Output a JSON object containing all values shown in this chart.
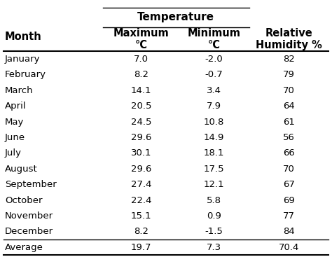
{
  "months": [
    "January",
    "February",
    "March",
    "April",
    "May",
    "June",
    "July",
    "August",
    "September",
    "October",
    "November",
    "December",
    "Average"
  ],
  "max_temp": [
    "7.0",
    "8.2",
    "14.1",
    "20.5",
    "24.5",
    "29.6",
    "30.1",
    "29.6",
    "27.4",
    "22.4",
    "15.1",
    "8.2",
    "19.7"
  ],
  "min_temp": [
    "-2.0",
    "-0.7",
    "3.4",
    "7.9",
    "10.8",
    "14.9",
    "18.1",
    "17.5",
    "12.1",
    "5.8",
    "0.9",
    "-1.5",
    "7.3"
  ],
  "humidity": [
    "82",
    "79",
    "70",
    "64",
    "61",
    "56",
    "66",
    "70",
    "67",
    "69",
    "77",
    "84",
    "70.4"
  ],
  "temp_group_header": "Temperature",
  "col0_header": "Month",
  "col1_header": "Maximum\n°C",
  "col2_header": "Minimum\n°C",
  "col3_header": "Relative\nHumidity %",
  "bg_color": "#ffffff",
  "text_color": "#000000",
  "data_fontsize": 9.5,
  "header_fontsize": 10.5,
  "group_header_fontsize": 11
}
